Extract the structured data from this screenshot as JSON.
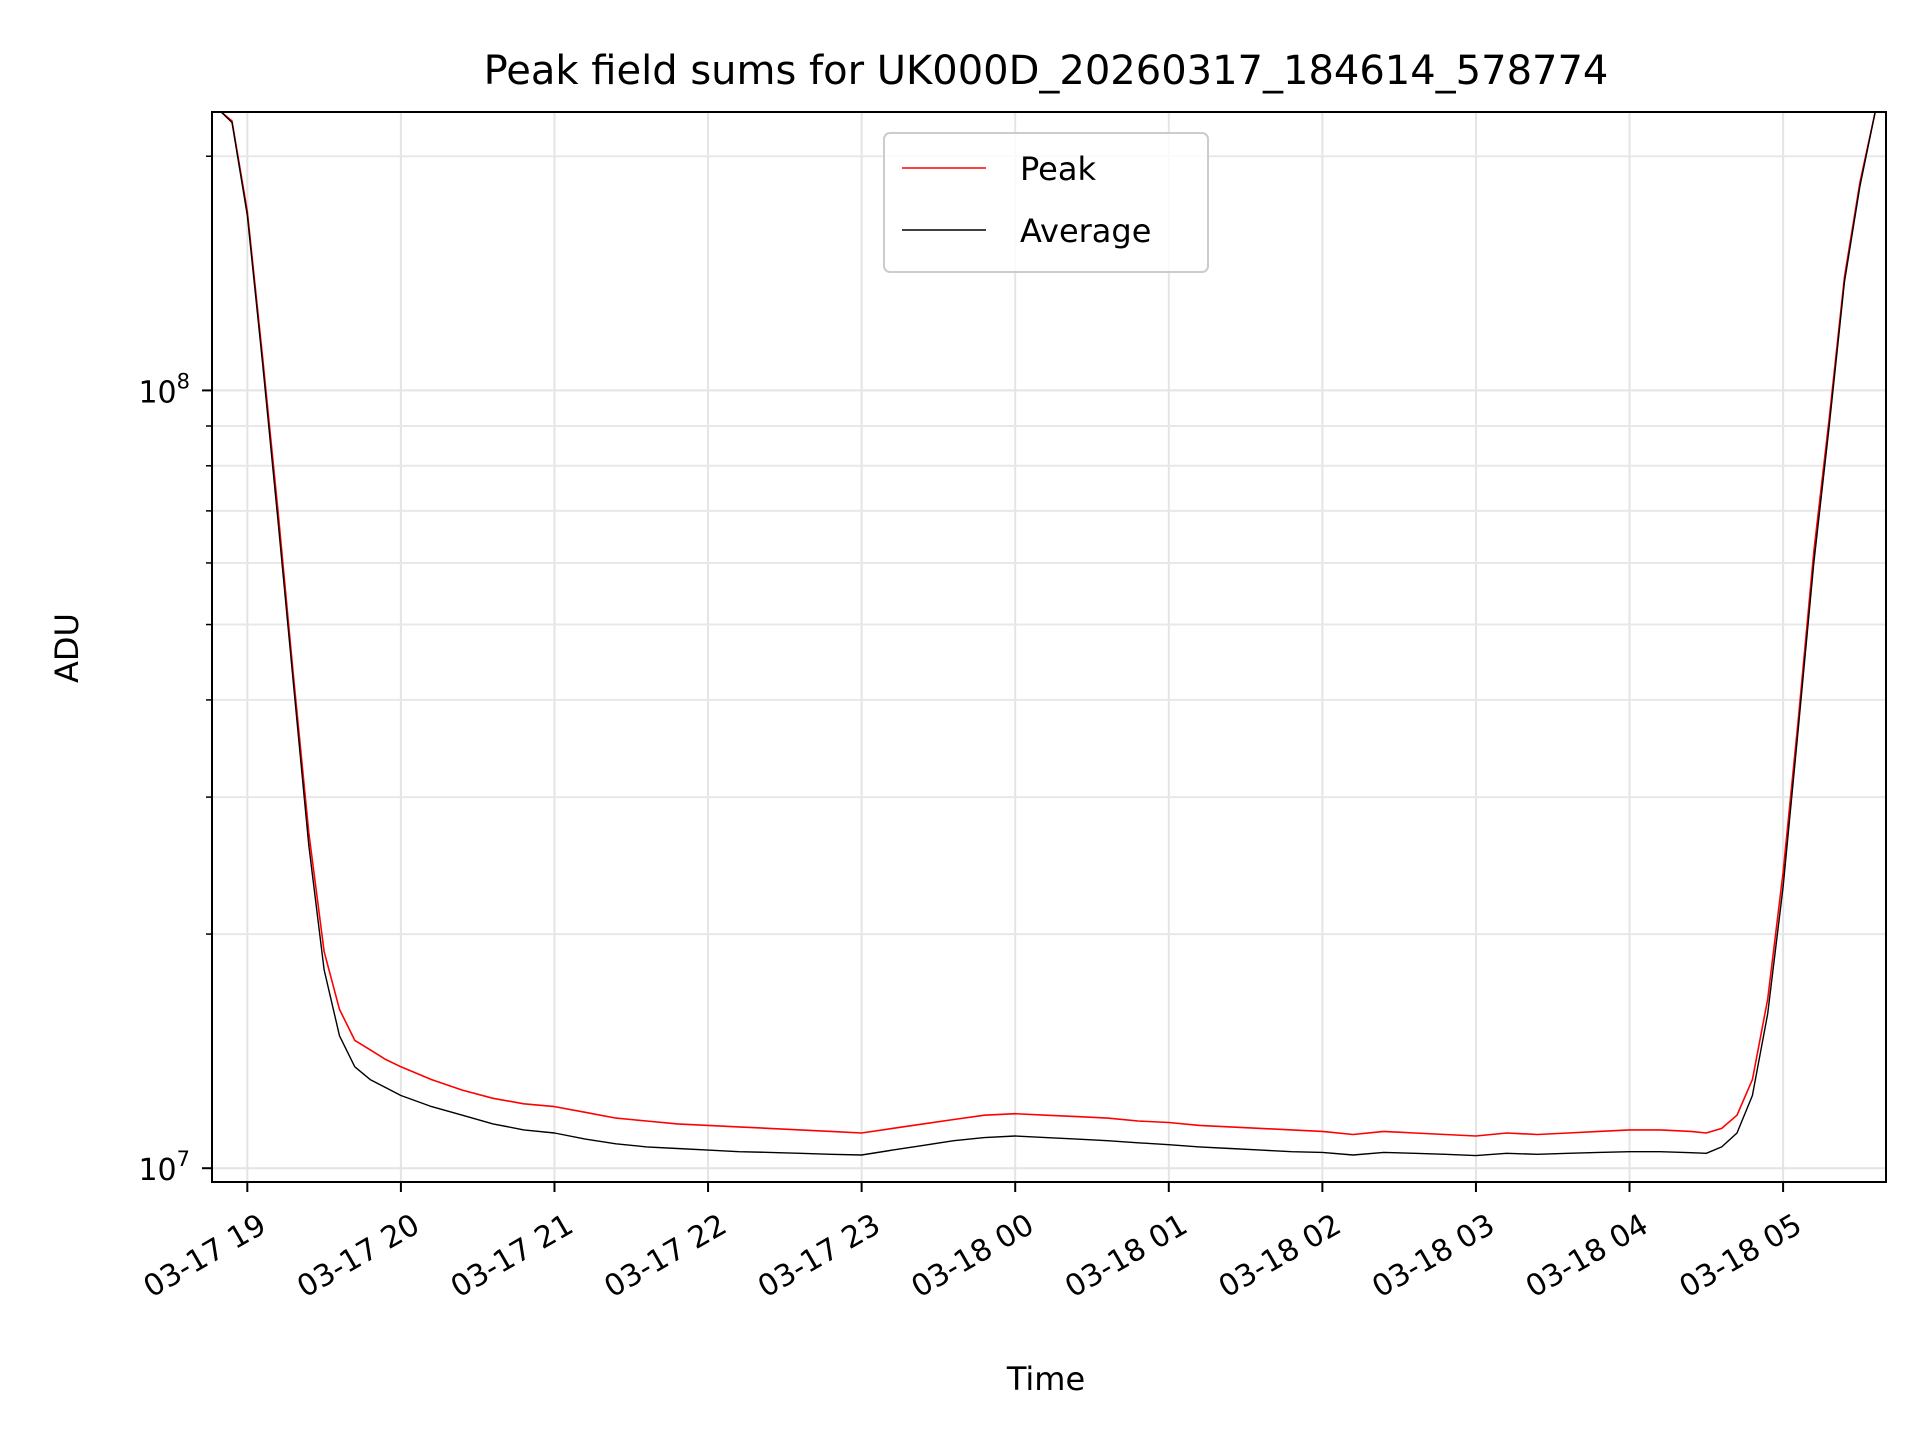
{
  "chart_data": {
    "type": "line",
    "title": "Peak field sums for UK000D_20260317_184614_578774",
    "xlabel": "Time",
    "ylabel": "ADU",
    "yscale": "log",
    "ylim": [
      9600000,
      228000000
    ],
    "xlim_hours": [
      18.77,
      29.67
    ],
    "x_unit": "hours since 2026-03-17 00:00",
    "grid": true,
    "legend_position": "top-center",
    "x_ticks": [
      {
        "hour": 19,
        "label": "03-17 19"
      },
      {
        "hour": 20,
        "label": "03-17 20"
      },
      {
        "hour": 21,
        "label": "03-17 21"
      },
      {
        "hour": 22,
        "label": "03-17 22"
      },
      {
        "hour": 23,
        "label": "03-17 23"
      },
      {
        "hour": 24,
        "label": "03-18 00"
      },
      {
        "hour": 25,
        "label": "03-18 01"
      },
      {
        "hour": 26,
        "label": "03-18 02"
      },
      {
        "hour": 27,
        "label": "03-18 03"
      },
      {
        "hour": 28,
        "label": "03-18 04"
      },
      {
        "hour": 29,
        "label": "03-18 05"
      }
    ],
    "y_ticks_major": [
      {
        "value": 10000000,
        "base": "10",
        "exp": "7"
      },
      {
        "value": 100000000,
        "base": "10",
        "exp": "8"
      }
    ],
    "y_ticks_minor": [
      20000000,
      30000000,
      40000000,
      50000000,
      60000000,
      70000000,
      80000000,
      90000000,
      200000000
    ],
    "series": [
      {
        "name": "Peak",
        "color": "#ff0000",
        "x": [
          18.77,
          18.83,
          18.9,
          19.0,
          19.1,
          19.2,
          19.3,
          19.4,
          19.5,
          19.6,
          19.7,
          19.8,
          19.9,
          20.0,
          20.2,
          20.4,
          20.6,
          20.8,
          21.0,
          21.2,
          21.4,
          21.6,
          21.8,
          22.0,
          22.2,
          22.4,
          22.6,
          22.8,
          23.0,
          23.2,
          23.4,
          23.6,
          23.8,
          24.0,
          24.2,
          24.4,
          24.6,
          24.8,
          25.0,
          25.2,
          25.4,
          25.6,
          25.8,
          26.0,
          26.2,
          26.4,
          26.6,
          26.8,
          27.0,
          27.2,
          27.4,
          27.6,
          27.8,
          28.0,
          28.2,
          28.4,
          28.5,
          28.6,
          28.7,
          28.8,
          28.9,
          29.0,
          29.1,
          29.2,
          29.3,
          29.4,
          29.5,
          29.6,
          29.67
        ],
        "y": [
          228000000,
          228000000,
          222000000,
          170000000,
          110000000,
          70000000,
          43000000,
          27000000,
          19000000,
          16000000,
          14600000,
          14200000,
          13800000,
          13500000,
          13000000,
          12600000,
          12300000,
          12100000,
          12000000,
          11800000,
          11600000,
          11500000,
          11400000,
          11350000,
          11300000,
          11250000,
          11200000,
          11150000,
          11100000,
          11250000,
          11400000,
          11550000,
          11700000,
          11750000,
          11700000,
          11650000,
          11600000,
          11500000,
          11450000,
          11350000,
          11300000,
          11250000,
          11200000,
          11150000,
          11050000,
          11150000,
          11100000,
          11050000,
          11000000,
          11100000,
          11050000,
          11100000,
          11150000,
          11200000,
          11200000,
          11150000,
          11100000,
          11250000,
          11700000,
          13000000,
          16500000,
          24000000,
          38000000,
          62000000,
          92000000,
          140000000,
          185000000,
          228000000,
          228000000
        ]
      },
      {
        "name": "Average",
        "color": "#000000",
        "x": [
          18.77,
          18.83,
          18.9,
          19.0,
          19.1,
          19.2,
          19.3,
          19.4,
          19.5,
          19.6,
          19.7,
          19.8,
          19.9,
          20.0,
          20.2,
          20.4,
          20.6,
          20.8,
          21.0,
          21.2,
          21.4,
          21.6,
          21.8,
          22.0,
          22.2,
          22.4,
          22.6,
          22.8,
          23.0,
          23.2,
          23.4,
          23.6,
          23.8,
          24.0,
          24.2,
          24.4,
          24.6,
          24.8,
          25.0,
          25.2,
          25.4,
          25.6,
          25.8,
          26.0,
          26.2,
          26.4,
          26.6,
          26.8,
          27.0,
          27.2,
          27.4,
          27.6,
          27.8,
          28.0,
          28.2,
          28.4,
          28.5,
          28.6,
          28.7,
          28.8,
          28.9,
          29.0,
          29.1,
          29.2,
          29.3,
          29.4,
          29.5,
          29.6,
          29.67
        ],
        "y": [
          228000000,
          228000000,
          221000000,
          168000000,
          108000000,
          68000000,
          42000000,
          26000000,
          18000000,
          14800000,
          13500000,
          13000000,
          12700000,
          12400000,
          12000000,
          11700000,
          11400000,
          11200000,
          11100000,
          10900000,
          10750000,
          10650000,
          10600000,
          10550000,
          10500000,
          10480000,
          10450000,
          10420000,
          10400000,
          10550000,
          10700000,
          10850000,
          10950000,
          11000000,
          10950000,
          10900000,
          10850000,
          10780000,
          10720000,
          10650000,
          10600000,
          10550000,
          10500000,
          10480000,
          10400000,
          10480000,
          10450000,
          10420000,
          10380000,
          10450000,
          10420000,
          10450000,
          10480000,
          10500000,
          10500000,
          10470000,
          10450000,
          10650000,
          11100000,
          12400000,
          15800000,
          23000000,
          37000000,
          60000000,
          90000000,
          138000000,
          183000000,
          228000000,
          228000000
        ]
      }
    ]
  }
}
